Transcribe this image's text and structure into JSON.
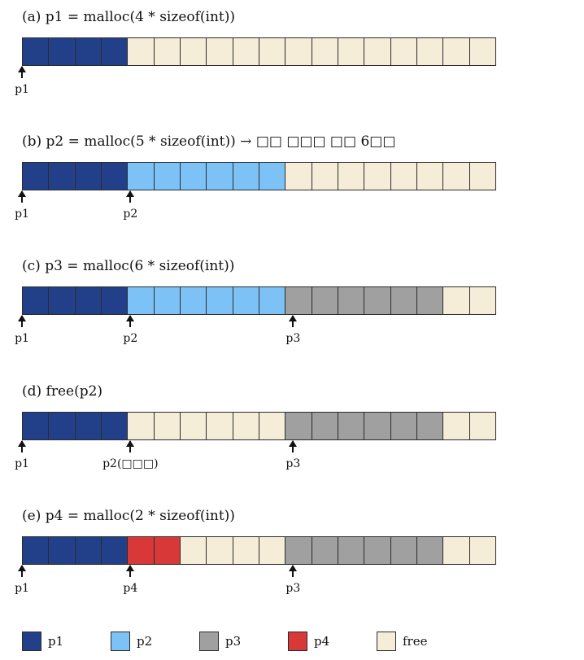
{
  "colors": {
    "p1": "#22408a",
    "p2": "#7cc2f7",
    "p3": "#a0a0a0",
    "p4": "#d93838",
    "free": "#f5edd8"
  },
  "panels": [
    {
      "title": "(a) p1 = malloc(4 * sizeof(int))",
      "cells": [
        "p1",
        "p1",
        "p1",
        "p1",
        "free",
        "free",
        "free",
        "free",
        "free",
        "free",
        "free",
        "free",
        "free",
        "free",
        "free",
        "free",
        "free",
        "free"
      ],
      "markers": [
        {
          "label": "p1",
          "cell": 0
        }
      ]
    },
    {
      "title": "(b) p2 = malloc(5 * sizeof(int))  → □□ □□□ □□ 6□□",
      "cells": [
        "p1",
        "p1",
        "p1",
        "p1",
        "p2",
        "p2",
        "p2",
        "p2",
        "p2",
        "p2",
        "free",
        "free",
        "free",
        "free",
        "free",
        "free",
        "free",
        "free"
      ],
      "markers": [
        {
          "label": "p1",
          "cell": 0
        },
        {
          "label": "p2",
          "cell": 4
        }
      ]
    },
    {
      "title": "(c) p3 = malloc(6 * sizeof(int))",
      "cells": [
        "p1",
        "p1",
        "p1",
        "p1",
        "p2",
        "p2",
        "p2",
        "p2",
        "p2",
        "p2",
        "p3",
        "p3",
        "p3",
        "p3",
        "p3",
        "p3",
        "free",
        "free"
      ],
      "markers": [
        {
          "label": "p1",
          "cell": 0
        },
        {
          "label": "p2",
          "cell": 4
        },
        {
          "label": "p3",
          "cell": 10
        }
      ]
    },
    {
      "title": "(d) free(p2)",
      "cells": [
        "p1",
        "p1",
        "p1",
        "p1",
        "free",
        "free",
        "free",
        "free",
        "free",
        "free",
        "p3",
        "p3",
        "p3",
        "p3",
        "p3",
        "p3",
        "free",
        "free"
      ],
      "markers": [
        {
          "label": "p1",
          "cell": 0
        },
        {
          "label": "p2(□□□)",
          "cell": 4
        },
        {
          "label": "p3",
          "cell": 10
        }
      ]
    },
    {
      "title": "(e) p4 = malloc(2 * sizeof(int))",
      "cells": [
        "p1",
        "p1",
        "p1",
        "p1",
        "p4",
        "p4",
        "free",
        "free",
        "free",
        "free",
        "p3",
        "p3",
        "p3",
        "p3",
        "p3",
        "p3",
        "free",
        "free"
      ],
      "markers": [
        {
          "label": "p1",
          "cell": 0
        },
        {
          "label": "p4",
          "cell": 4
        },
        {
          "label": "p3",
          "cell": 10
        }
      ]
    }
  ],
  "legend": [
    {
      "key": "p1",
      "label": "p1"
    },
    {
      "key": "p2",
      "label": "p2"
    },
    {
      "key": "p3",
      "label": "p3"
    },
    {
      "key": "p4",
      "label": "p4"
    },
    {
      "key": "free",
      "label": "free"
    }
  ]
}
